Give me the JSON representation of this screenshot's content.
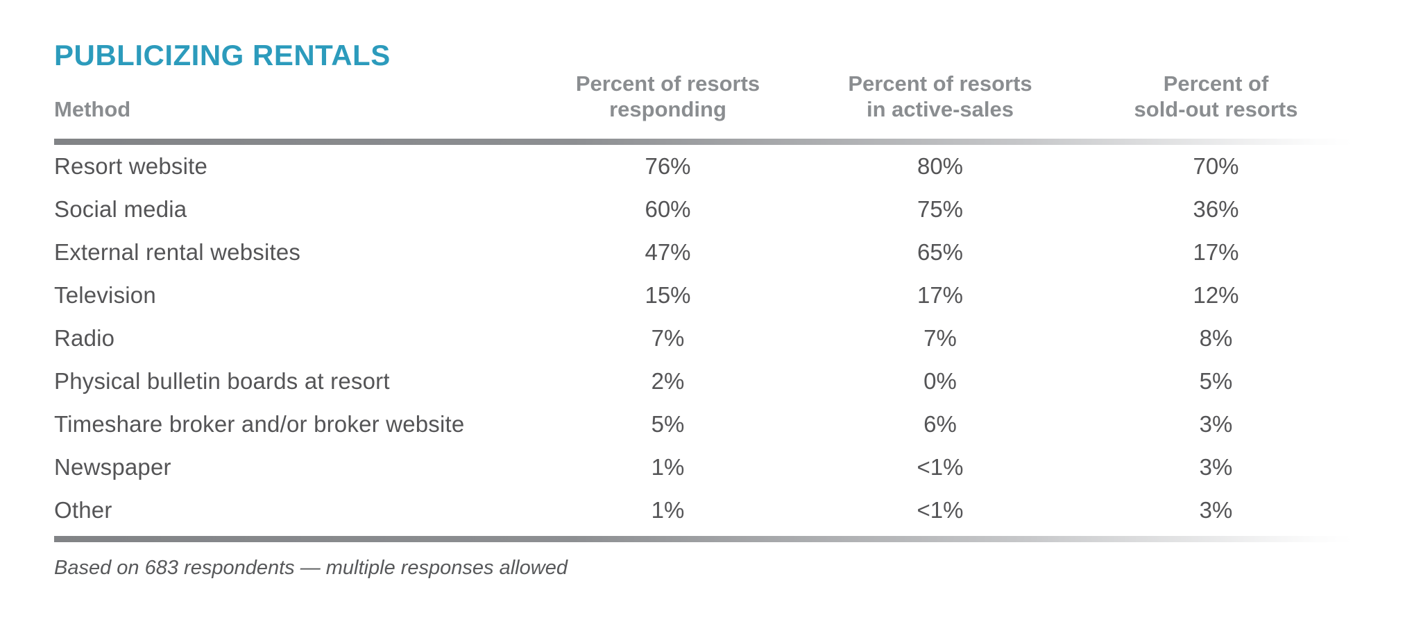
{
  "title": "PUBLICIZING RENTALS",
  "colors": {
    "title_teal": "#2C9BBC",
    "header_gray": "#8A8D90",
    "body_gray": "#545456",
    "rule_gray": "#818386"
  },
  "table": {
    "method_header": "Method",
    "columns": [
      {
        "line1": "Percent of resorts",
        "line2": "responding",
        "full": "Percent of resorts responding"
      },
      {
        "line1": "Percent of resorts",
        "line2": "in active-sales",
        "full": "Percent of resorts in active-sales"
      },
      {
        "line1": "Percent of",
        "line2": "sold-out resorts",
        "full": "Percent of sold-out resorts"
      }
    ],
    "rows": [
      {
        "method": "Resort website",
        "responding": "76%",
        "active_sales": "80%",
        "sold_out": "70%"
      },
      {
        "method": "Social media",
        "responding": "60%",
        "active_sales": "75%",
        "sold_out": "36%"
      },
      {
        "method": "External rental websites",
        "responding": "47%",
        "active_sales": "65%",
        "sold_out": "17%"
      },
      {
        "method": "Television",
        "responding": "15%",
        "active_sales": "17%",
        "sold_out": "12%"
      },
      {
        "method": "Radio",
        "responding": "7%",
        "active_sales": "7%",
        "sold_out": "8%"
      },
      {
        "method": "Physical bulletin boards at resort",
        "responding": "2%",
        "active_sales": "0%",
        "sold_out": "5%"
      },
      {
        "method": "Timeshare broker and/or broker website",
        "responding": "5%",
        "active_sales": "6%",
        "sold_out": "3%"
      },
      {
        "method": "Newspaper",
        "responding": "1%",
        "active_sales": "<1%",
        "sold_out": "3%"
      },
      {
        "method": "Other",
        "responding": "1%",
        "active_sales": "<1%",
        "sold_out": "3%"
      }
    ],
    "footnote": "Based on 683 respondents — multiple responses allowed"
  },
  "chart_data": {
    "type": "table",
    "title": "PUBLICIZING RENTALS",
    "categories": [
      "Resort website",
      "Social media",
      "External rental websites",
      "Television",
      "Radio",
      "Physical bulletin boards at resort",
      "Timeshare broker and/or broker website",
      "Newspaper",
      "Other"
    ],
    "series": [
      {
        "name": "Percent of resorts responding",
        "values": [
          "76%",
          "60%",
          "47%",
          "15%",
          "7%",
          "2%",
          "5%",
          "1%",
          "1%"
        ]
      },
      {
        "name": "Percent of resorts in active-sales",
        "values": [
          "80%",
          "75%",
          "65%",
          "17%",
          "7%",
          "0%",
          "6%",
          "<1%",
          "<1%"
        ]
      },
      {
        "name": "Percent of sold-out resorts",
        "values": [
          "70%",
          "36%",
          "17%",
          "12%",
          "8%",
          "5%",
          "3%",
          "3%",
          "3%"
        ]
      }
    ],
    "note": "Based on 683 respondents — multiple responses allowed",
    "layout": "first column left-aligned methods; three percentage columns centered; thick gray fading rules above and below body"
  }
}
